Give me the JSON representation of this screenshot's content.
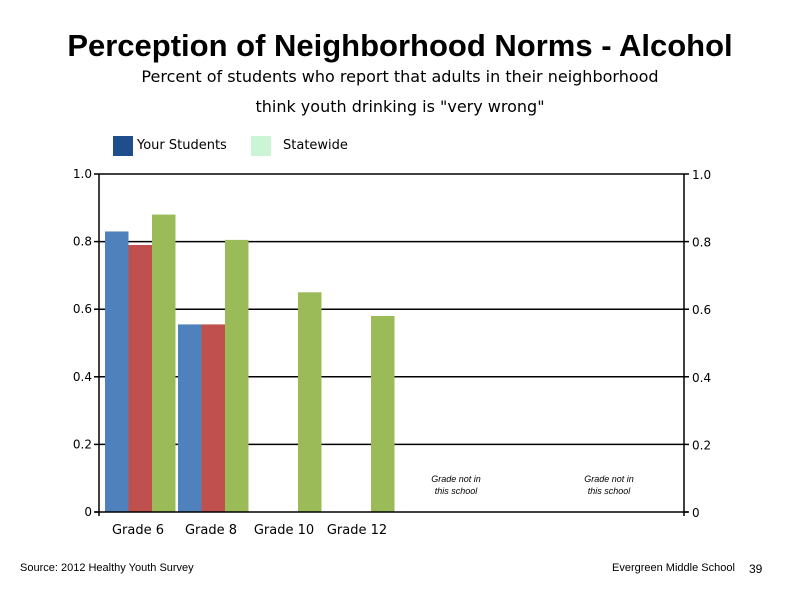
{
  "colors": {
    "your_students": "#1f4e8c",
    "statewide": "#ccf5d6",
    "bar_blue": "#4f81bd",
    "bar_red": "#c0504d",
    "bar_green": "#9bbb59"
  },
  "footer": {
    "source": "Source: 2012 Healthy Youth Survey",
    "school": "Evergreen Middle School",
    "page": "39"
  },
  "chart_data": {
    "type": "bar",
    "title": "Perception of Neighborhood Norms - Alcohol",
    "subtitle": [
      "Percent of students who report that adults in their neighborhood",
      "think youth drinking is \"very wrong\""
    ],
    "categories": [
      "Grade 6",
      "Grade 8",
      "Grade 10",
      "Grade 12",
      "",
      ""
    ],
    "series": [
      {
        "values": [
          0.83,
          0.555,
          null,
          null,
          null,
          null
        ],
        "color": "#4f81bd"
      },
      {
        "values": [
          0.79,
          0.555,
          null,
          null,
          null,
          null
        ],
        "color": "#c0504d"
      },
      {
        "values": [
          0.88,
          0.805,
          0.65,
          0.58,
          null,
          null
        ],
        "color": "#9bbb59"
      }
    ],
    "legend": [
      {
        "name": "Your Students",
        "color": "#1f4e8c"
      },
      {
        "name": "Statewide",
        "color": "#ccf5d6"
      }
    ],
    "legend_position": "top-left",
    "annotations": [
      {
        "category_index": 4,
        "lines": [
          "Grade not in",
          "this school"
        ]
      },
      {
        "category_index": 5,
        "lines": [
          "Grade not in",
          "this school"
        ]
      }
    ],
    "ylim": [
      0,
      1
    ],
    "yticks": [
      0,
      0.2,
      0.4,
      0.6,
      0.8,
      1.0
    ],
    "ytick_labels_left": [
      "0",
      "0.2",
      "0.4",
      "0.6",
      "0.8",
      "1.0"
    ],
    "ytick_labels_right": [
      "0",
      "0.2",
      "0.4",
      "0.6",
      "0.8",
      "1.0"
    ],
    "grid": true
  }
}
